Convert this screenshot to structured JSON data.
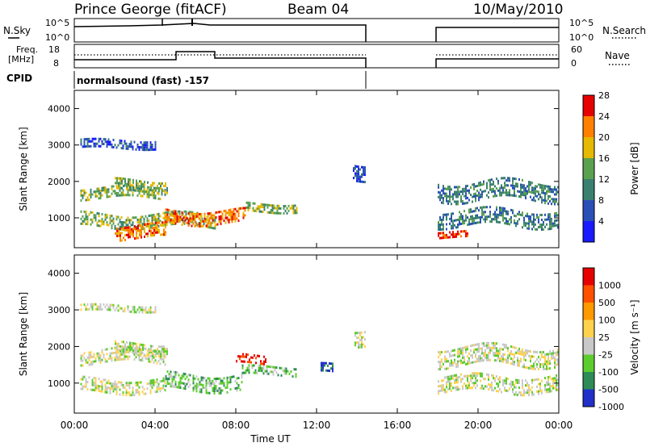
{
  "header": {
    "station": "Prince George (fitACF)",
    "beam": "Beam 04",
    "date": "10/May/2010"
  },
  "noise_panel": {
    "left_label": "N.Sky",
    "right_label": "N.Search",
    "left_ticks": [
      "10^5",
      "10^0"
    ],
    "right_ticks": [
      "10^5",
      "10^0"
    ]
  },
  "freq_panel": {
    "left_label_line1": "Freq.",
    "left_label_line2": "[MHz]",
    "right_label": "Nave",
    "left_ticks": [
      "18",
      "8"
    ],
    "right_ticks": [
      "60",
      "0"
    ]
  },
  "cpid": {
    "label": "CPID",
    "program": "normalsound (fast) -157"
  },
  "chart_data": [
    {
      "type": "heatmap",
      "title": "",
      "xlabel": "Time UT",
      "ylabel": "Slant Range [km]",
      "x_ticks": [
        "00:00",
        "04:00",
        "08:00",
        "12:00",
        "16:00",
        "20:00",
        "00:00"
      ],
      "xlim_hours": [
        0,
        24
      ],
      "ylim": [
        180,
        4500
      ],
      "y_ticks": [
        "1000",
        "2000",
        "3000",
        "4000"
      ],
      "colorbar": {
        "label": "Power [dB]",
        "ticks": [
          "4",
          "8",
          "12",
          "16",
          "20",
          "24",
          "28"
        ],
        "colors": [
          "#1a1aff",
          "#2a50b8",
          "#3a8070",
          "#5aa050",
          "#e6b800",
          "#ff8000",
          "#e60000"
        ]
      },
      "data_gap_hours": [
        14.5,
        18.0
      ],
      "echo_bands": [
        {
          "start_h": 0.3,
          "end_h": 4.5,
          "range_km": 1700,
          "half_width_km": 150,
          "level": 3
        },
        {
          "start_h": 2.0,
          "end_h": 4.6,
          "range_km": 1900,
          "half_width_km": 150,
          "level": 3
        },
        {
          "start_h": 0.3,
          "end_h": 4.0,
          "range_km": 3050,
          "half_width_km": 100,
          "level": 1
        },
        {
          "start_h": 0.3,
          "end_h": 7.0,
          "range_km": 950,
          "half_width_km": 170,
          "level": 3
        },
        {
          "start_h": 2.0,
          "end_h": 4.5,
          "range_km": 650,
          "half_width_km": 170,
          "level": 5
        },
        {
          "start_h": 4.5,
          "end_h": 8.5,
          "range_km": 1050,
          "half_width_km": 170,
          "level": 5
        },
        {
          "start_h": 8.5,
          "end_h": 11.0,
          "range_km": 1300,
          "half_width_km": 110,
          "level": 3
        },
        {
          "start_h": 13.8,
          "end_h": 14.4,
          "range_km": 2300,
          "half_width_km": 220,
          "level": 1
        },
        {
          "start_h": 18.0,
          "end_h": 24.0,
          "range_km": 1750,
          "half_width_km": 250,
          "level": 2
        },
        {
          "start_h": 18.0,
          "end_h": 24.0,
          "range_km": 1000,
          "half_width_km": 220,
          "level": 2
        },
        {
          "start_h": 18.0,
          "end_h": 19.5,
          "range_km": 550,
          "half_width_km": 80,
          "level": 6
        }
      ]
    },
    {
      "type": "heatmap",
      "title": "",
      "xlabel": "Time UT",
      "ylabel": "Slant Range [km]",
      "x_ticks": [
        "00:00",
        "04:00",
        "08:00",
        "12:00",
        "16:00",
        "20:00",
        "00:00"
      ],
      "xlim_hours": [
        0,
        24
      ],
      "ylim": [
        180,
        4500
      ],
      "y_ticks": [
        "1000",
        "2000",
        "3000",
        "4000"
      ],
      "colorbar": {
        "label": "Velocity [m s⁻¹]",
        "ticks": [
          "1000",
          "500",
          "100",
          "25",
          "-25",
          "-100",
          "-500",
          "-1000"
        ],
        "colors": [
          "#2030c8",
          "#2e8b57",
          "#5ccc2e",
          "#c8c8c8",
          "#ffd24d",
          "#ff9900",
          "#ff5000",
          "#e60000"
        ]
      },
      "data_gap_hours": [
        14.5,
        18.0
      ],
      "echo_bands": [
        {
          "start_h": 0.3,
          "end_h": 4.5,
          "range_km": 1750,
          "half_width_km": 180,
          "level": 3
        },
        {
          "start_h": 2.0,
          "end_h": 4.6,
          "range_km": 1950,
          "half_width_km": 150,
          "level": 3
        },
        {
          "start_h": 0.3,
          "end_h": 4.0,
          "range_km": 3050,
          "half_width_km": 90,
          "level": 3
        },
        {
          "start_h": 0.3,
          "end_h": 4.5,
          "range_km": 950,
          "half_width_km": 170,
          "level": 3
        },
        {
          "start_h": 4.5,
          "end_h": 8.3,
          "range_km": 1050,
          "half_width_km": 200,
          "level": 2
        },
        {
          "start_h": 8.3,
          "end_h": 11.0,
          "range_km": 1350,
          "half_width_km": 110,
          "level": 2
        },
        {
          "start_h": 8.0,
          "end_h": 9.5,
          "range_km": 1650,
          "half_width_km": 120,
          "level": 7
        },
        {
          "start_h": 12.2,
          "end_h": 12.8,
          "range_km": 1400,
          "half_width_km": 120,
          "level": 0
        },
        {
          "start_h": 13.8,
          "end_h": 14.4,
          "range_km": 2300,
          "half_width_km": 200,
          "level": 3
        },
        {
          "start_h": 18.0,
          "end_h": 24.0,
          "range_km": 1750,
          "half_width_km": 250,
          "level": 3
        },
        {
          "start_h": 18.0,
          "end_h": 24.0,
          "range_km": 1000,
          "half_width_km": 200,
          "level": 3
        }
      ]
    }
  ]
}
